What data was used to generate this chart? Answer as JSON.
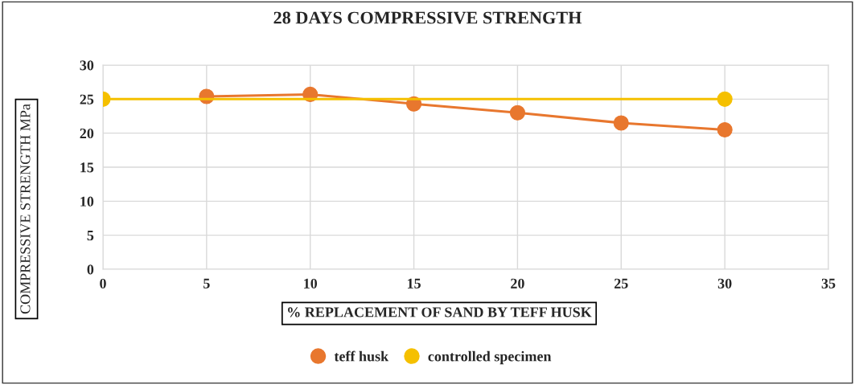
{
  "chart_data": {
    "type": "line",
    "title": "28 DAYS COMPRESSIVE STRENGTH",
    "xlabel": "% REPLACEMENT OF SAND BY TEFF HUSK",
    "ylabel": "COMPRESSIVE STRENGTH MPa",
    "series": [
      {
        "name": "teff husk",
        "color": "#e8772e",
        "x": [
          5,
          10,
          15,
          20,
          25,
          30
        ],
        "values": [
          25.4,
          25.7,
          24.3,
          23.0,
          21.5,
          20.5
        ]
      },
      {
        "name": "controlled specimen",
        "color": "#f5c000",
        "x": [
          0,
          30
        ],
        "values": [
          25,
          25
        ]
      }
    ],
    "xlim": [
      0,
      35
    ],
    "xticks": [
      0,
      5,
      10,
      15,
      20,
      25,
      30,
      35
    ],
    "ylim": [
      0,
      30
    ],
    "yticks": [
      0,
      5,
      10,
      15,
      20,
      25,
      30
    ],
    "grid": true,
    "legend": "bottom",
    "marker": "circle",
    "line_style": "solid"
  }
}
